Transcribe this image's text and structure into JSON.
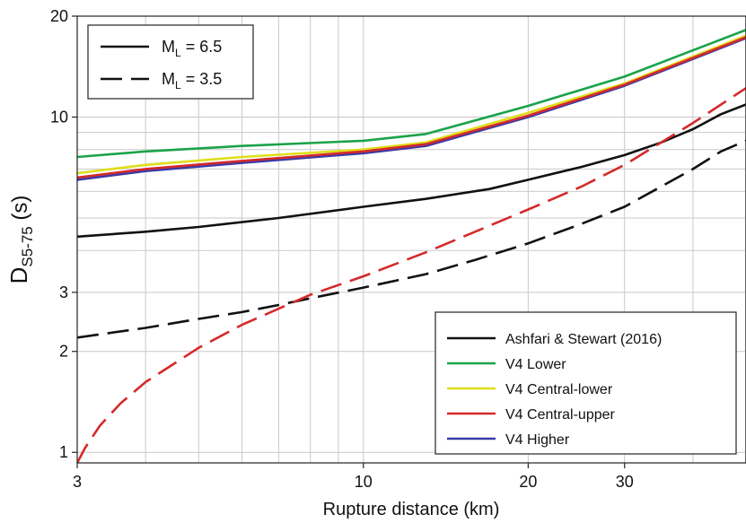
{
  "chart_data": {
    "type": "line",
    "xlabel": "Rupture distance (km)",
    "ylabel": {
      "main": "D",
      "sub": "S5-75",
      "suffix": " (s)"
    },
    "x_scale": "log",
    "y_scale": "log",
    "xlim": [
      3,
      50
    ],
    "ylim": [
      0.93,
      20
    ],
    "x_ticks": [
      {
        "value": 3,
        "label": "3"
      },
      {
        "value": 10,
        "label": "10"
      },
      {
        "value": 20,
        "label": "20"
      },
      {
        "value": 30,
        "label": "30"
      }
    ],
    "y_ticks": [
      {
        "value": 1,
        "label": "1"
      },
      {
        "value": 2,
        "label": "2"
      },
      {
        "value": 3,
        "label": "3"
      },
      {
        "value": 10,
        "label": "10"
      },
      {
        "value": 20,
        "label": "20"
      }
    ],
    "x_grid": [
      3,
      4,
      5,
      6,
      7,
      8,
      9,
      10,
      20,
      30,
      40,
      50
    ],
    "y_grid": [
      1,
      2,
      3,
      4,
      5,
      6,
      7,
      8,
      9,
      10,
      20
    ],
    "magnitude_legend": [
      {
        "main": "M",
        "sub": "L",
        "rest": " = 6.5",
        "style": "solid"
      },
      {
        "main": "M",
        "sub": "L",
        "rest": " = 3.5",
        "style": "dashed"
      }
    ],
    "model_legend": [
      {
        "label": "Ashfari & Stewart (2016)",
        "color": "#111111"
      },
      {
        "label": "V4 Lower",
        "color": "#1aa34a"
      },
      {
        "label": "V4 Central-lower",
        "color": "#dede1a"
      },
      {
        "label": "V4 Central-upper",
        "color": "#d42a2a"
      },
      {
        "label": "V4 Higher",
        "color": "#3a3aa8"
      }
    ],
    "series": [
      {
        "model": "Ashfari & Stewart (2016)",
        "magnitude": 6.5,
        "color": "#111111",
        "dash": "none",
        "x": [
          3,
          4,
          5,
          7,
          10,
          13,
          17,
          20,
          25,
          30,
          35,
          40,
          45,
          50
        ],
        "y": [
          4.4,
          4.55,
          4.7,
          5.0,
          5.4,
          5.7,
          6.1,
          6.5,
          7.1,
          7.7,
          8.4,
          9.2,
          10.2,
          10.9
        ]
      },
      {
        "model": "V4 Lower",
        "magnitude": 6.5,
        "color": "#1aa34a",
        "dash": "none",
        "x": [
          3,
          4,
          6,
          10,
          13,
          20,
          30,
          50
        ],
        "y": [
          7.6,
          7.9,
          8.2,
          8.5,
          8.9,
          10.8,
          13.2,
          18.2
        ]
      },
      {
        "model": "V4 Central-lower",
        "magnitude": 6.5,
        "color": "#dede1a",
        "dash": "none",
        "x": [
          3,
          4,
          6,
          10,
          13,
          20,
          30,
          50
        ],
        "y": [
          6.8,
          7.2,
          7.6,
          8.0,
          8.4,
          10.3,
          12.6,
          17.5
        ]
      },
      {
        "model": "V4 Higher",
        "magnitude": 6.5,
        "color": "#3a3aa8",
        "dash": "none",
        "x": [
          3,
          4,
          6,
          10,
          13,
          20,
          30,
          50
        ],
        "y": [
          6.5,
          6.9,
          7.3,
          7.8,
          8.2,
          10.0,
          12.4,
          17.2
        ]
      },
      {
        "model": "V4 Central-upper",
        "magnitude": 6.5,
        "color": "#d42a2a",
        "dash": "none",
        "x": [
          3,
          4,
          6,
          10,
          13,
          20,
          30,
          50
        ],
        "y": [
          6.6,
          7.0,
          7.4,
          7.9,
          8.3,
          10.1,
          12.5,
          17.3
        ]
      },
      {
        "model": "Ashfari & Stewart (2016)",
        "magnitude": 3.5,
        "color": "#111111",
        "dash": "24 10",
        "x": [
          3,
          4,
          5,
          6,
          7,
          8,
          10,
          13,
          16,
          20,
          25,
          30,
          40,
          45,
          50
        ],
        "y": [
          2.2,
          2.35,
          2.5,
          2.62,
          2.75,
          2.88,
          3.1,
          3.4,
          3.75,
          4.2,
          4.8,
          5.4,
          7.0,
          7.9,
          8.5
        ]
      },
      {
        "model": "V4 Central-upper",
        "magnitude": 3.5,
        "color": "#d42a2a",
        "dash": "24 10",
        "x": [
          3,
          3.1,
          3.3,
          3.6,
          4,
          5,
          6,
          8,
          10,
          13,
          16,
          20,
          25,
          30,
          40,
          50
        ],
        "y": [
          0.93,
          1.03,
          1.2,
          1.4,
          1.62,
          2.05,
          2.4,
          2.95,
          3.35,
          3.95,
          4.55,
          5.3,
          6.2,
          7.2,
          9.6,
          12.2
        ]
      }
    ]
  }
}
